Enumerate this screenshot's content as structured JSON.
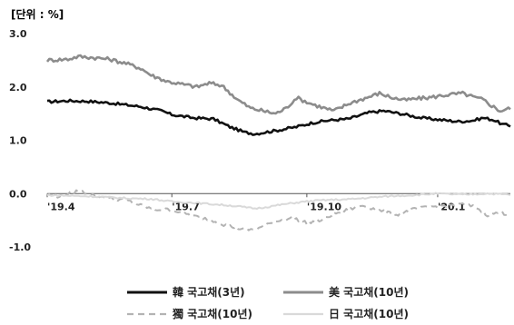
{
  "chart_data": {
    "type": "line",
    "unit_label": "[단위 : %]",
    "ylim": [
      -1.0,
      3.0
    ],
    "yticks": [
      "3.0",
      "2.0",
      "1.0",
      "0.0",
      "-1.0"
    ],
    "ytick_values": [
      3.0,
      2.0,
      1.0,
      0.0,
      -1.0
    ],
    "xticks": [
      "'19.4",
      "'19.7",
      "'19.10",
      "'20.1"
    ],
    "xtick_positions": [
      0,
      60,
      125,
      188
    ],
    "x_count": 224,
    "legend_position": "bottom",
    "grid": false,
    "series": [
      {
        "name": "韓 국고채(3년)",
        "color": "#111111",
        "style": "solid",
        "keypoints": [
          [
            0,
            1.72
          ],
          [
            10,
            1.74
          ],
          [
            20,
            1.73
          ],
          [
            30,
            1.7
          ],
          [
            45,
            1.63
          ],
          [
            55,
            1.55
          ],
          [
            60,
            1.48
          ],
          [
            70,
            1.42
          ],
          [
            80,
            1.4
          ],
          [
            88,
            1.25
          ],
          [
            95,
            1.15
          ],
          [
            100,
            1.12
          ],
          [
            110,
            1.18
          ],
          [
            120,
            1.25
          ],
          [
            128,
            1.33
          ],
          [
            135,
            1.37
          ],
          [
            145,
            1.4
          ],
          [
            155,
            1.52
          ],
          [
            162,
            1.55
          ],
          [
            170,
            1.5
          ],
          [
            180,
            1.42
          ],
          [
            190,
            1.38
          ],
          [
            198,
            1.35
          ],
          [
            205,
            1.37
          ],
          [
            210,
            1.42
          ],
          [
            215,
            1.38
          ],
          [
            219,
            1.3
          ],
          [
            223,
            1.27
          ]
        ]
      },
      {
        "name": "美 국고채(10년)",
        "color": "#8c8c8c",
        "style": "solid",
        "keypoints": [
          [
            0,
            2.5
          ],
          [
            10,
            2.52
          ],
          [
            15,
            2.57
          ],
          [
            22,
            2.55
          ],
          [
            30,
            2.52
          ],
          [
            38,
            2.44
          ],
          [
            45,
            2.35
          ],
          [
            50,
            2.22
          ],
          [
            58,
            2.1
          ],
          [
            65,
            2.05
          ],
          [
            72,
            2.0
          ],
          [
            78,
            2.07
          ],
          [
            84,
            2.03
          ],
          [
            92,
            1.75
          ],
          [
            98,
            1.6
          ],
          [
            104,
            1.55
          ],
          [
            110,
            1.5
          ],
          [
            115,
            1.6
          ],
          [
            120,
            1.8
          ],
          [
            126,
            1.7
          ],
          [
            132,
            1.62
          ],
          [
            138,
            1.55
          ],
          [
            146,
            1.7
          ],
          [
            154,
            1.8
          ],
          [
            160,
            1.88
          ],
          [
            166,
            1.8
          ],
          [
            172,
            1.75
          ],
          [
            178,
            1.78
          ],
          [
            184,
            1.8
          ],
          [
            192,
            1.85
          ],
          [
            200,
            1.88
          ],
          [
            206,
            1.8
          ],
          [
            210,
            1.76
          ],
          [
            214,
            1.65
          ],
          [
            218,
            1.55
          ],
          [
            223,
            1.6
          ]
        ]
      },
      {
        "name": "獨 국고채(10년)",
        "color": "#b3b3b3",
        "style": "dashed",
        "keypoints": [
          [
            0,
            -0.02
          ],
          [
            5,
            -0.05
          ],
          [
            10,
            0.0
          ],
          [
            15,
            0.05
          ],
          [
            20,
            0.0
          ],
          [
            25,
            -0.05
          ],
          [
            32,
            -0.1
          ],
          [
            38,
            -0.12
          ],
          [
            45,
            -0.22
          ],
          [
            52,
            -0.3
          ],
          [
            58,
            -0.3
          ],
          [
            65,
            -0.35
          ],
          [
            70,
            -0.42
          ],
          [
            78,
            -0.48
          ],
          [
            85,
            -0.58
          ],
          [
            92,
            -0.65
          ],
          [
            98,
            -0.68
          ],
          [
            104,
            -0.62
          ],
          [
            110,
            -0.52
          ],
          [
            118,
            -0.45
          ],
          [
            125,
            -0.55
          ],
          [
            132,
            -0.5
          ],
          [
            138,
            -0.38
          ],
          [
            145,
            -0.3
          ],
          [
            152,
            -0.22
          ],
          [
            160,
            -0.32
          ],
          [
            168,
            -0.4
          ],
          [
            176,
            -0.3
          ],
          [
            184,
            -0.25
          ],
          [
            192,
            -0.22
          ],
          [
            200,
            -0.2
          ],
          [
            206,
            -0.25
          ],
          [
            212,
            -0.4
          ],
          [
            218,
            -0.35
          ],
          [
            223,
            -0.4
          ]
        ]
      },
      {
        "name": "日 국고채(10년)",
        "color": "#d9d9d9",
        "style": "solid",
        "keypoints": [
          [
            0,
            -0.03
          ],
          [
            10,
            -0.04
          ],
          [
            20,
            -0.05
          ],
          [
            30,
            -0.07
          ],
          [
            40,
            -0.09
          ],
          [
            50,
            -0.1
          ],
          [
            60,
            -0.15
          ],
          [
            70,
            -0.17
          ],
          [
            80,
            -0.2
          ],
          [
            90,
            -0.23
          ],
          [
            100,
            -0.28
          ],
          [
            106,
            -0.25
          ],
          [
            114,
            -0.2
          ],
          [
            124,
            -0.15
          ],
          [
            134,
            -0.12
          ],
          [
            144,
            -0.11
          ],
          [
            154,
            -0.08
          ],
          [
            164,
            -0.05
          ],
          [
            176,
            -0.03
          ],
          [
            188,
            0.0
          ],
          [
            200,
            -0.02
          ],
          [
            212,
            0.0
          ],
          [
            223,
            -0.02
          ]
        ]
      }
    ]
  }
}
